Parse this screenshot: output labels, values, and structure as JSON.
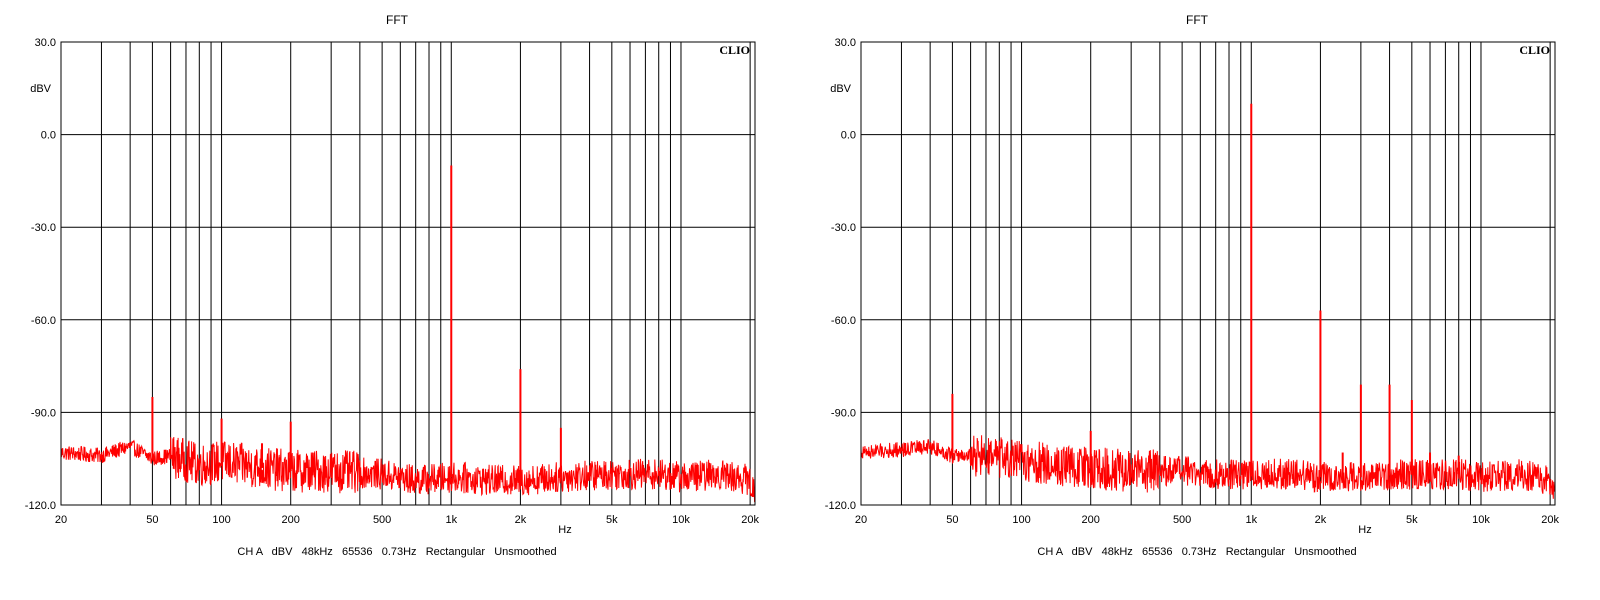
{
  "colors": {
    "trace": "#ff0000",
    "grid": "#000000",
    "background": "#ffffff"
  },
  "chart_data": [
    {
      "type": "line",
      "title": "FFT",
      "brand": "CLIO",
      "ylabel": "dBV",
      "xunit": "Hz",
      "footer": "CH A   dBV   48kHz   65536   0.73Hz   Rectangular   Unsmoothed",
      "x_scale": "log",
      "xlim": [
        20,
        21000
      ],
      "ylim": [
        -120,
        30
      ],
      "grid": true,
      "y_ticks": [
        {
          "v": 30,
          "label": "30.0"
        },
        {
          "v": 0,
          "label": "0.0"
        },
        {
          "v": -30,
          "label": "-30.0"
        },
        {
          "v": -60,
          "label": "-60.0"
        },
        {
          "v": -90,
          "label": "-90.0"
        },
        {
          "v": -120,
          "label": "-120.0"
        }
      ],
      "x_ticks": [
        {
          "v": 20,
          "label": "20"
        },
        {
          "v": 50,
          "label": "50"
        },
        {
          "v": 100,
          "label": "100"
        },
        {
          "v": 200,
          "label": "200"
        },
        {
          "v": 500,
          "label": "500"
        },
        {
          "v": 1000,
          "label": "1k"
        },
        {
          "v": 2000,
          "label": "2k"
        },
        {
          "v": 5000,
          "label": "5k"
        },
        {
          "v": 10000,
          "label": "10k"
        },
        {
          "v": 20000,
          "label": "20k"
        }
      ],
      "noise_floor": [
        [
          20,
          -103
        ],
        [
          30,
          -104
        ],
        [
          40,
          -101
        ],
        [
          50,
          -105
        ],
        [
          60,
          -104
        ],
        [
          80,
          -107
        ],
        [
          100,
          -106
        ],
        [
          150,
          -108
        ],
        [
          200,
          -109
        ],
        [
          300,
          -109
        ],
        [
          500,
          -110
        ],
        [
          700,
          -112
        ],
        [
          1000,
          -111
        ],
        [
          1500,
          -112
        ],
        [
          2000,
          -112
        ],
        [
          3000,
          -111
        ],
        [
          5000,
          -110
        ],
        [
          8000,
          -110
        ],
        [
          10000,
          -111
        ],
        [
          15000,
          -110
        ],
        [
          20000,
          -112
        ],
        [
          21000,
          -118
        ]
      ],
      "series": [
        {
          "values": [
            [
              50,
              -85
            ],
            [
              100,
              -92
            ],
            [
              150,
              -100
            ],
            [
              200,
              -93
            ],
            [
              1000,
              -10
            ],
            [
              2000,
              -76
            ],
            [
              3000,
              -95
            ]
          ]
        }
      ]
    },
    {
      "type": "line",
      "title": "FFT",
      "brand": "CLIO",
      "ylabel": "dBV",
      "xunit": "Hz",
      "footer": "CH A   dBV   48kHz   65536   0.73Hz   Rectangular   Unsmoothed",
      "x_scale": "log",
      "xlim": [
        20,
        21000
      ],
      "ylim": [
        -120,
        30
      ],
      "grid": true,
      "y_ticks": [
        {
          "v": 30,
          "label": "30.0"
        },
        {
          "v": 0,
          "label": "0.0"
        },
        {
          "v": -30,
          "label": "-30.0"
        },
        {
          "v": -60,
          "label": "-60.0"
        },
        {
          "v": -90,
          "label": "-90.0"
        },
        {
          "v": -120,
          "label": "-120.0"
        }
      ],
      "x_ticks": [
        {
          "v": 20,
          "label": "20"
        },
        {
          "v": 50,
          "label": "50"
        },
        {
          "v": 100,
          "label": "100"
        },
        {
          "v": 200,
          "label": "200"
        },
        {
          "v": 500,
          "label": "500"
        },
        {
          "v": 1000,
          "label": "1k"
        },
        {
          "v": 2000,
          "label": "2k"
        },
        {
          "v": 5000,
          "label": "5k"
        },
        {
          "v": 10000,
          "label": "10k"
        },
        {
          "v": 20000,
          "label": "20k"
        }
      ],
      "noise_floor": [
        [
          20,
          -103
        ],
        [
          30,
          -102
        ],
        [
          40,
          -101
        ],
        [
          50,
          -104
        ],
        [
          60,
          -104
        ],
        [
          80,
          -105
        ],
        [
          100,
          -106
        ],
        [
          150,
          -107
        ],
        [
          200,
          -108
        ],
        [
          300,
          -109
        ],
        [
          500,
          -109
        ],
        [
          700,
          -110
        ],
        [
          1000,
          -110
        ],
        [
          1500,
          -110
        ],
        [
          2000,
          -111
        ],
        [
          3000,
          -111
        ],
        [
          5000,
          -110
        ],
        [
          8000,
          -110
        ],
        [
          10000,
          -111
        ],
        [
          15000,
          -110
        ],
        [
          20000,
          -112
        ],
        [
          21000,
          -117
        ]
      ],
      "series": [
        {
          "values": [
            [
              50,
              -84
            ],
            [
              200,
              -96
            ],
            [
              1000,
              10
            ],
            [
              2000,
              -57
            ],
            [
              2500,
              -103
            ],
            [
              3000,
              -81
            ],
            [
              4000,
              -81
            ],
            [
              5000,
              -86
            ],
            [
              6000,
              -103
            ],
            [
              8000,
              -104
            ]
          ]
        }
      ]
    }
  ]
}
